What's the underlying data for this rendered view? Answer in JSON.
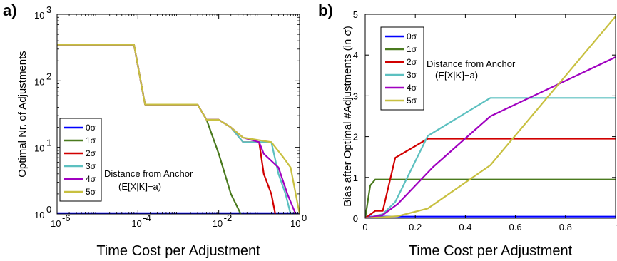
{
  "chart_data": [
    {
      "panel": "a)",
      "type": "line",
      "xlabel": "Time Cost per Adjustment",
      "ylabel": "Optimal Nr. of Adjustments",
      "xscale": "log",
      "yscale": "log",
      "xlim": [
        1e-06,
        1
      ],
      "ylim": [
        1,
        1000
      ],
      "xticks": [
        {
          "value": 1e-06,
          "base": "10",
          "exp": "-6"
        },
        {
          "value": 0.0001,
          "base": "10",
          "exp": "-4"
        },
        {
          "value": 0.01,
          "base": "10",
          "exp": "-2"
        },
        {
          "value": 1,
          "base": "10",
          "exp": "0"
        }
      ],
      "yticks": [
        {
          "value": 1,
          "base": "10",
          "exp": "0"
        },
        {
          "value": 10,
          "base": "10",
          "exp": "1"
        },
        {
          "value": 100,
          "base": "10",
          "exp": "2"
        },
        {
          "value": 1000,
          "base": "10",
          "exp": "3"
        }
      ],
      "legend_position": "lower-left",
      "annotation": [
        "Distance from Anchor",
        "(E[X|K]−a)"
      ],
      "series": [
        {
          "name": "0σ",
          "color": "#0000ff",
          "x": [
            1e-06,
            1
          ],
          "y": [
            1.03,
            1.03
          ]
        },
        {
          "name": "1σ",
          "color": "#4a7a1e",
          "x": [
            1e-06,
            8e-05,
            0.00015,
            0.003,
            0.005,
            0.01,
            0.02,
            0.035
          ],
          "y": [
            350,
            350,
            44,
            44,
            26,
            8,
            2,
            1
          ]
        },
        {
          "name": "2σ",
          "color": "#d10000",
          "x": [
            1e-06,
            8e-05,
            0.00015,
            0.003,
            0.005,
            0.01,
            0.02,
            0.04,
            0.1,
            0.13,
            0.2,
            0.25
          ],
          "y": [
            350,
            350,
            44,
            44,
            26,
            26,
            20,
            12,
            12,
            4,
            2,
            1
          ]
        },
        {
          "name": "3σ",
          "color": "#5cc0c0",
          "x": [
            1e-06,
            8e-05,
            0.00015,
            0.003,
            0.005,
            0.01,
            0.02,
            0.04,
            0.2,
            0.3,
            0.45,
            0.6
          ],
          "y": [
            350,
            350,
            44,
            44,
            26,
            26,
            20,
            12,
            12,
            4,
            2,
            1
          ]
        },
        {
          "name": "4σ",
          "color": "#a000c0",
          "x": [
            1e-06,
            8e-05,
            0.00015,
            0.003,
            0.005,
            0.01,
            0.02,
            0.04,
            0.1,
            0.13,
            0.3,
            0.5,
            0.8
          ],
          "y": [
            350,
            350,
            44,
            44,
            26,
            26,
            20,
            14,
            12,
            8,
            5,
            2,
            1
          ]
        },
        {
          "name": "5σ",
          "color": "#c8c040",
          "x": [
            1e-06,
            8e-05,
            0.00015,
            0.003,
            0.005,
            0.01,
            0.02,
            0.04,
            0.2,
            0.4,
            0.6,
            1
          ],
          "y": [
            350,
            350,
            44,
            44,
            26,
            26,
            20,
            14,
            12,
            7,
            5,
            1
          ]
        }
      ]
    },
    {
      "panel": "b)",
      "type": "line",
      "xlabel": "Time Cost per Adjustment",
      "ylabel": "Bias after Optimal #Adjustments (in σ)",
      "xlim": [
        0,
        1
      ],
      "ylim": [
        0,
        5
      ],
      "xticks": [
        "0",
        "0.2",
        "0.4",
        "0.6",
        "0.8",
        "1"
      ],
      "yticks": [
        "0",
        "1",
        "2",
        "3",
        "4",
        "5"
      ],
      "legend_position": "top-left",
      "annotation": [
        "Distance from Anchor",
        "(E[X|K]−a)"
      ],
      "series": [
        {
          "name": "0σ",
          "color": "#0000ff",
          "x": [
            0,
            1
          ],
          "y": [
            0.04,
            0.04
          ]
        },
        {
          "name": "1σ",
          "color": "#4a7a1e",
          "x": [
            0,
            0.02,
            0.04,
            1
          ],
          "y": [
            0,
            0.8,
            0.95,
            0.95
          ]
        },
        {
          "name": "2σ",
          "color": "#d10000",
          "x": [
            0,
            0.04,
            0.07,
            0.12,
            0.25,
            1
          ],
          "y": [
            0,
            0.18,
            0.18,
            1.48,
            1.95,
            1.95
          ]
        },
        {
          "name": "3σ",
          "color": "#5cc0c0",
          "x": [
            0,
            0.07,
            0.12,
            0.25,
            0.5,
            1
          ],
          "y": [
            0,
            0.1,
            0.4,
            2.02,
            2.95,
            2.95
          ]
        },
        {
          "name": "4σ",
          "color": "#a000c0",
          "x": [
            0,
            0.07,
            0.13,
            0.27,
            0.5,
            1
          ],
          "y": [
            0,
            0.08,
            0.35,
            1.25,
            2.5,
            3.95
          ]
        },
        {
          "name": "5σ",
          "color": "#c8c040",
          "x": [
            0,
            0.13,
            0.25,
            0.5,
            1
          ],
          "y": [
            0,
            0.05,
            0.24,
            1.3,
            4.95
          ]
        }
      ]
    }
  ]
}
